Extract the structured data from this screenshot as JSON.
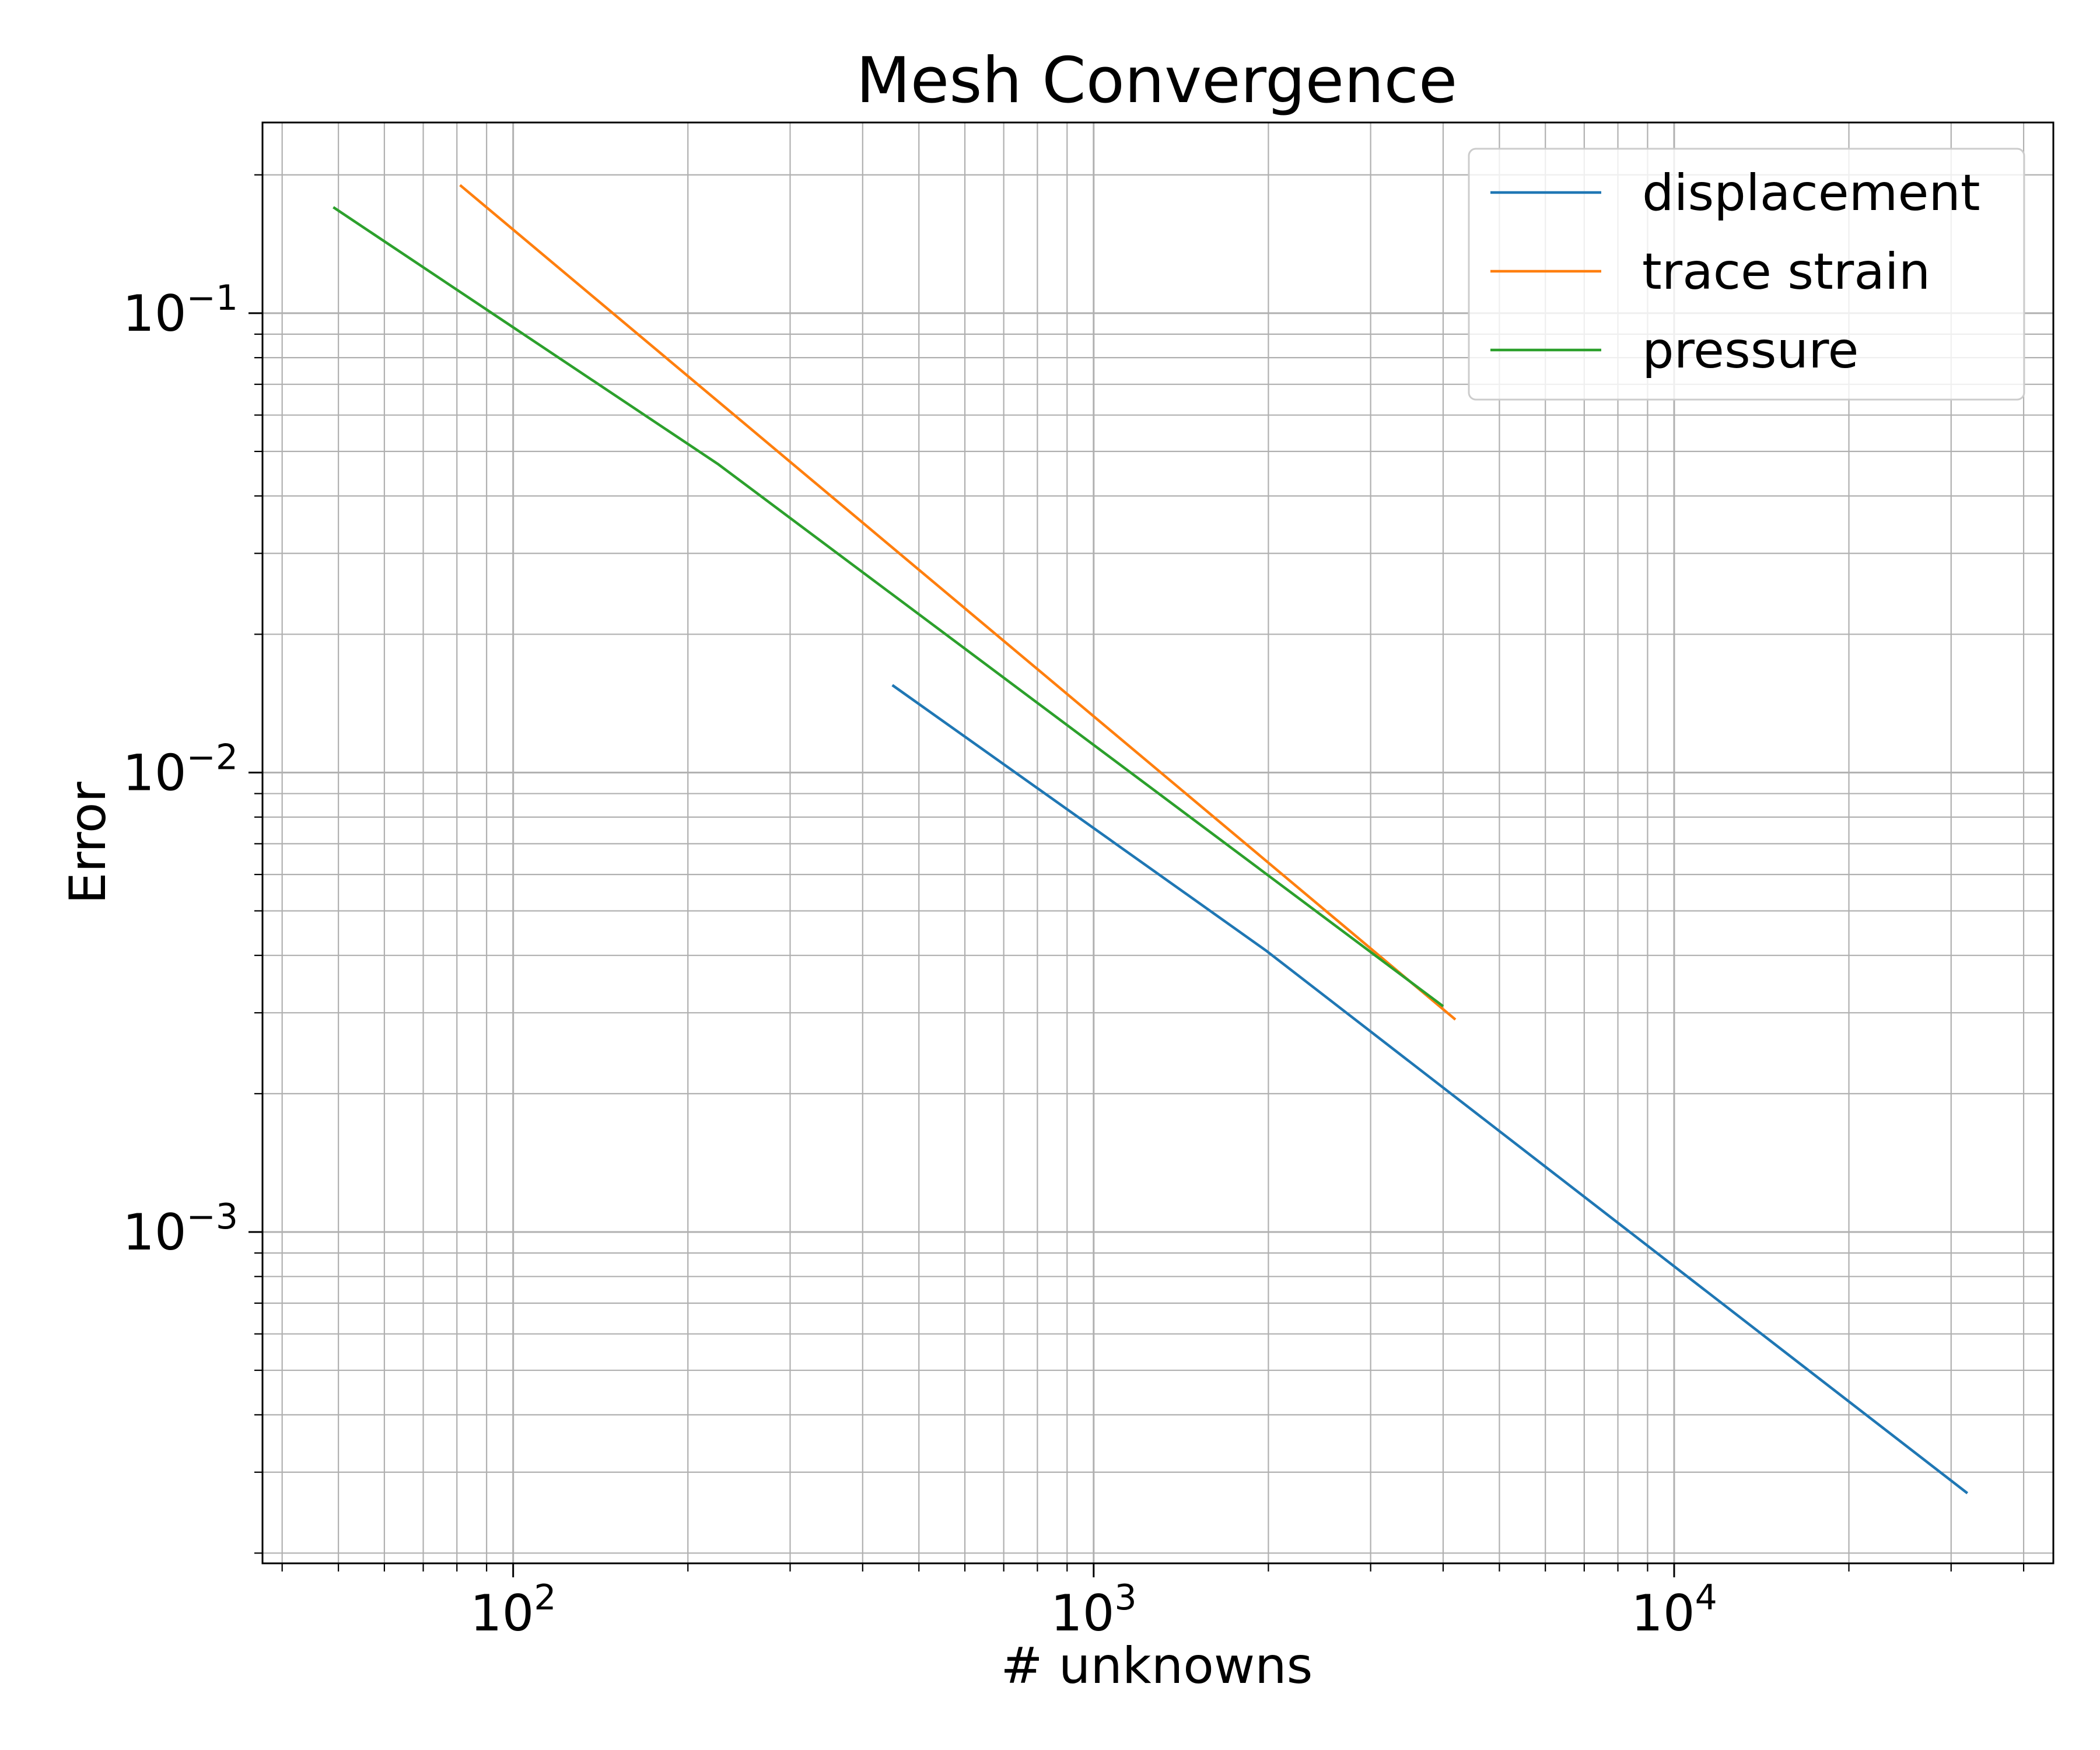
{
  "chart_data": {
    "type": "line",
    "title": "Mesh Convergence",
    "xlabel": "# unknowns",
    "ylabel": "Error",
    "x_scale": "log",
    "y_scale": "log",
    "xlim": [
      37,
      45000
    ],
    "ylim": [
      0.00019,
      0.26
    ],
    "grid": "major and minor",
    "legend_position": "upper right",
    "x_ticks": [
      {
        "value": 100,
        "base": "10",
        "exp": "2"
      },
      {
        "value": 1000,
        "base": "10",
        "exp": "3"
      },
      {
        "value": 10000,
        "base": "10",
        "exp": "4"
      }
    ],
    "y_ticks": [
      {
        "value": 0.001,
        "base": "10",
        "exp": "−3"
      },
      {
        "value": 0.01,
        "base": "10",
        "exp": "−2"
      },
      {
        "value": 0.1,
        "base": "10",
        "exp": "−1"
      }
    ],
    "series": [
      {
        "name": "displacement",
        "color": "#1f77b4",
        "x": [
          450,
          1980,
          32000
        ],
        "y": [
          0.0155,
          0.0041,
          0.00027
        ]
      },
      {
        "name": "trace strain",
        "color": "#ff7f0e",
        "x": [
          81,
          4200
        ],
        "y": [
          0.19,
          0.0029
        ]
      },
      {
        "name": "pressure",
        "color": "#2ca02c",
        "x": [
          49,
          225,
          4000
        ],
        "y": [
          0.17,
          0.047,
          0.0031
        ]
      }
    ]
  }
}
